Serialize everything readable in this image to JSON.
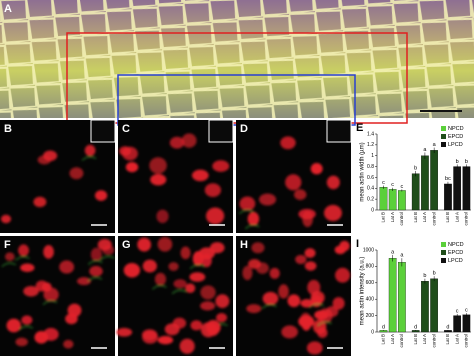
{
  "panels": [
    "A",
    "B",
    "C",
    "D",
    "E",
    "F",
    "G",
    "H",
    "I"
  ],
  "chart_data": [
    {
      "type": "bar",
      "y_label": "mean actin width (µm)",
      "categories": [
        "Lat B",
        "Lat A",
        "control"
      ],
      "ylim": [
        0,
        1.4
      ],
      "yticks": [
        0,
        0.2,
        0.4,
        0.6,
        0.8,
        1,
        1.2,
        1.4
      ],
      "series": [
        {
          "name": "NPCD",
          "color": "#5bd03a",
          "values": [
            0.42,
            0.38,
            0.36
          ],
          "errors": [
            0.03,
            0.03,
            0.02
          ],
          "letters": [
            "c",
            "c",
            "c"
          ]
        },
        {
          "name": "EPCD",
          "color": "#1f4d1a",
          "values": [
            0.67,
            1.0,
            1.1
          ],
          "errors": [
            0.05,
            0.06,
            0.05
          ],
          "letters": [
            "b",
            "a",
            "a"
          ]
        },
        {
          "name": "LPCD",
          "color": "#111111",
          "values": [
            0.48,
            0.8,
            0.8
          ],
          "errors": [
            0.04,
            0.04,
            0.04
          ],
          "letters": [
            "bc",
            "b",
            "b"
          ]
        }
      ]
    },
    {
      "type": "bar",
      "y_label": "mean actin intensity (a.u.)",
      "categories": [
        "Lat B",
        "Lat A",
        "control"
      ],
      "ylim": [
        0,
        1000
      ],
      "yticks": [
        0,
        200,
        400,
        600,
        800,
        1000
      ],
      "series": [
        {
          "name": "NPCD",
          "color": "#5bd03a",
          "values": [
            20,
            900,
            850
          ],
          "errors": [
            5,
            40,
            50
          ],
          "letters": [
            "d",
            "a",
            "a"
          ]
        },
        {
          "name": "EPCD",
          "color": "#1f4d1a",
          "values": [
            20,
            620,
            650
          ],
          "errors": [
            5,
            30,
            30
          ],
          "letters": [
            "d",
            "b",
            "b"
          ]
        },
        {
          "name": "LPCD",
          "color": "#111111",
          "values": [
            20,
            200,
            210
          ],
          "errors": [
            5,
            20,
            20
          ],
          "letters": [
            "d",
            "c",
            "c"
          ]
        }
      ]
    }
  ]
}
